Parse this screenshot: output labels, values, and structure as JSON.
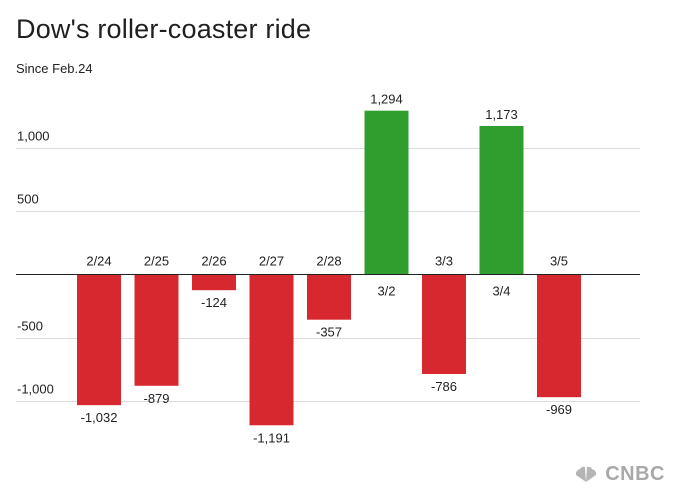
{
  "header": {
    "title": "Dow's roller-coaster ride",
    "subtitle": "Since Feb.24"
  },
  "brand": {
    "logo_text": "CNBC",
    "icon": "peacock-icon"
  },
  "colors": {
    "positive": "#2f9e2f",
    "negative": "#d7282f",
    "grid": "#dcdcdc",
    "axis": "#222222",
    "brand": "#a9a9a9"
  },
  "chart_data": {
    "type": "bar",
    "title": "Dow's roller-coaster ride",
    "subtitle": "Since Feb.24",
    "categories": [
      "2/24",
      "2/25",
      "2/26",
      "2/27",
      "2/28",
      "3/2",
      "3/3",
      "3/4",
      "3/5"
    ],
    "values": [
      -1032,
      -879,
      -124,
      -1191,
      -357,
      1294,
      -786,
      1173,
      -969
    ],
    "data_labels": [
      "-1,032",
      "-879",
      "-124",
      "-1,191",
      "-357",
      "1,294",
      "-786",
      "1,173",
      "-969"
    ],
    "y_ticks": [
      1000,
      500,
      -500,
      -1000
    ],
    "y_tick_labels": [
      "1,000",
      "500",
      "-500",
      "-1,000"
    ],
    "ylim": [
      -1300,
      1400
    ],
    "grid": true,
    "legend": "none",
    "xlabel": "",
    "ylabel": ""
  }
}
